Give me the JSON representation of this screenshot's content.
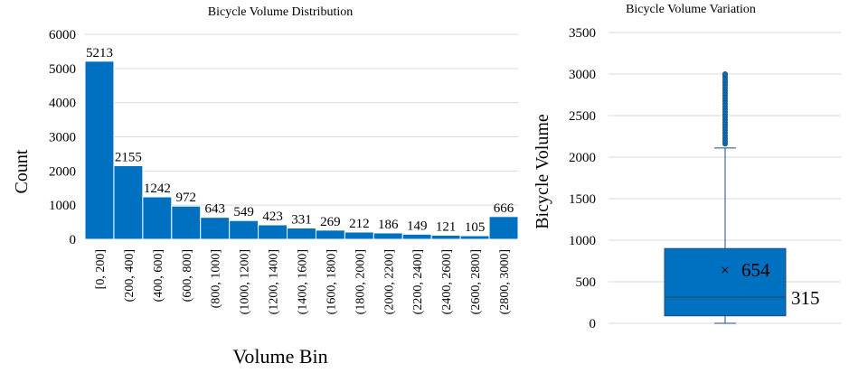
{
  "colors": {
    "bar": "#0070C0",
    "bar_stroke": "#ffffff",
    "grid": "#d9d9d9",
    "box": "#0070C0",
    "box_stroke": "#1f4e79",
    "whisker": "#1f4e79"
  },
  "chart_data": [
    {
      "type": "bar",
      "title": "Bicycle Volume Distribution",
      "xlabel": "Volume Bin",
      "ylabel": "Count",
      "ylim": [
        0,
        6000
      ],
      "yticks": [
        "0",
        "1000",
        "2000",
        "3000",
        "4000",
        "5000",
        "6000"
      ],
      "grid": true,
      "categories": [
        "[0, 200]",
        "(200, 400]",
        "(400, 600]",
        "(600, 800]",
        "(800, 1000]",
        "(1000, 1200]",
        "(1200, 1400]",
        "(1400, 1600]",
        "(1600, 1800]",
        "(1800, 2000]",
        "(2000, 2200]",
        "(2200, 2400]",
        "(2400, 2600]",
        "(2600, 2800]",
        "(2800, 3000]"
      ],
      "values": [
        5213,
        2155,
        1242,
        972,
        643,
        549,
        423,
        331,
        269,
        212,
        186,
        149,
        121,
        105,
        666
      ],
      "value_labels": [
        "5213",
        "2155",
        "1242",
        "972",
        "643",
        "549",
        "423",
        "331",
        "269",
        "212",
        "186",
        "149",
        "121",
        "105",
        "666"
      ]
    },
    {
      "type": "box",
      "title": "Bicycle Volume Variation",
      "ylabel": "Bicycle Volume",
      "ylim": [
        0,
        3500
      ],
      "yticks": [
        "0",
        "500",
        "1000",
        "1500",
        "2000",
        "2500",
        "3000",
        "3500"
      ],
      "grid": true,
      "min": 0,
      "q1": 90,
      "median": 315,
      "q3": 900,
      "whisker_high": 2110,
      "mean": 654,
      "mean_label": "654",
      "median_label": "315",
      "outliers_from": 2160,
      "outliers_to": 3000,
      "mean_marker": "×"
    }
  ]
}
